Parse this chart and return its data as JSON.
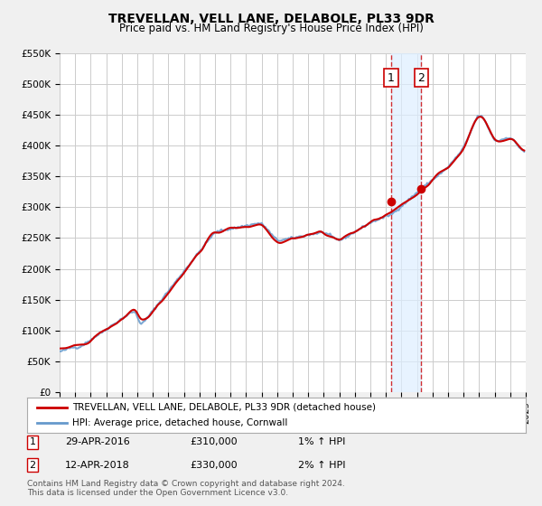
{
  "title": "TREVELLAN, VELL LANE, DELABOLE, PL33 9DR",
  "subtitle": "Price paid vs. HM Land Registry's House Price Index (HPI)",
  "hpi_label": "HPI: Average price, detached house, Cornwall",
  "price_label": "TREVELLAN, VELL LANE, DELABOLE, PL33 9DR (detached house)",
  "legend_note1": "1    29-APR-2016         £310,000         1% ↑ HPI",
  "legend_note2": "2    12-APR-2018         £330,000         2% ↑ HPI",
  "footer": "Contains HM Land Registry data © Crown copyright and database right 2024.\nThis data is licensed under the Open Government Licence v3.0.",
  "sale1_date": 2016.33,
  "sale1_price": 310000,
  "sale2_date": 2018.28,
  "sale2_price": 330000,
  "vline1_x": 2016.33,
  "vline2_x": 2018.28,
  "shade_xmin": 2016.33,
  "shade_xmax": 2018.28,
  "ylim": [
    0,
    550000
  ],
  "xlim": [
    1995,
    2025
  ],
  "price_line_color": "#cc0000",
  "hpi_line_color": "#6699cc",
  "bg_color": "#f0f0f0",
  "plot_bg_color": "#ffffff",
  "shade_color": "#ddeeff",
  "vline_color": "#cc0000",
  "grid_color": "#cccccc",
  "marker_color": "#cc0000"
}
